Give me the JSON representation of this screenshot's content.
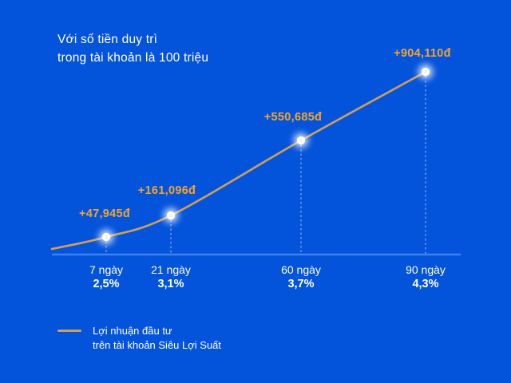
{
  "title": {
    "line1": "Với số tiền duy trì",
    "line2": "trong tài khoản là 100 triệu"
  },
  "chart_data": {
    "type": "line",
    "categories": [
      "7 ngày",
      "21 ngày",
      "60 ngày",
      "90 ngày"
    ],
    "tick_sublabels": [
      "2,5%",
      "3,1%",
      "3,7%",
      "4,3%"
    ],
    "series": [
      {
        "name": "Lợi nhuận đầu tư trên tài khoản Siêu Lợi Suất",
        "values": [
          47945,
          161096,
          550685,
          904110
        ]
      }
    ],
    "point_labels": [
      "+47,945đ",
      "+161,096đ",
      "+550,685đ",
      "+904,110đ"
    ],
    "title": "Với số tiền duy trì trong tài khoản là 100 triệu",
    "xlabel": "",
    "ylabel": "",
    "grid": false,
    "legend_position": "bottom-left",
    "currency_unit": "đ"
  },
  "legend": {
    "line1": "Lợi nhuận đầu tư",
    "line2": "trên tài khoản Siêu Lợi Suất"
  },
  "colors": {
    "background": "#0353db",
    "line": "#d2a055",
    "label": "#f5a529",
    "axis": "#3e82ee",
    "text": "#ffffff"
  }
}
